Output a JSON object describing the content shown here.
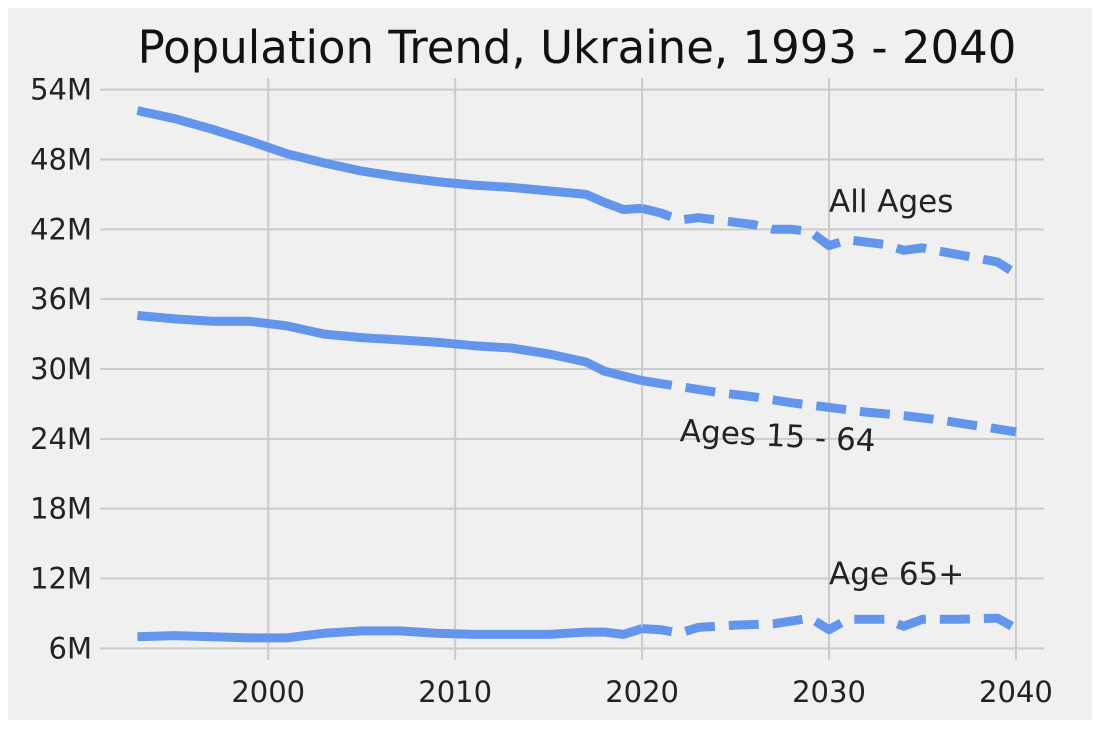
{
  "chart_data": {
    "type": "line",
    "title": "Population Trend, Ukraine, 1993 - 2040",
    "xlabel": "",
    "ylabel": "",
    "xlim": [
      1991,
      2041.5
    ],
    "ylim": [
      5,
      55
    ],
    "x_ticks": [
      2000,
      2010,
      2020,
      2030,
      2040
    ],
    "x_tick_labels": [
      "2000",
      "2010",
      "2020",
      "2030",
      "2040"
    ],
    "y_ticks": [
      6,
      12,
      18,
      24,
      30,
      36,
      42,
      48,
      54
    ],
    "y_tick_labels": [
      "6M",
      "12M",
      "18M",
      "24M",
      "30M",
      "36M",
      "42M",
      "48M",
      "54M"
    ],
    "grid": true,
    "line_color": "#6495ed",
    "series": [
      {
        "x": [
          1993,
          1995,
          1997,
          1999,
          2001,
          2003,
          2005,
          2007,
          2009,
          2011,
          2013,
          2015,
          2017,
          2018,
          2019,
          2020,
          2021,
          2022,
          2023,
          2024,
          2025,
          2026,
          2027,
          2028,
          2029,
          2030,
          2031,
          2032,
          2033,
          2034,
          2035,
          2036,
          2037,
          2038,
          2039,
          2040
        ],
        "values": [
          52.2,
          51.5,
          50.6,
          49.6,
          48.5,
          47.7,
          47.0,
          46.5,
          46.1,
          45.8,
          45.6,
          45.3,
          45.0,
          44.3,
          43.7,
          43.8,
          43.4,
          42.8,
          43.0,
          42.8,
          42.6,
          42.4,
          42.0,
          42.0,
          41.8,
          40.6,
          41.1,
          40.9,
          40.7,
          40.2,
          40.4,
          40.1,
          39.8,
          39.5,
          39.2,
          38.2
        ],
        "projected_from_index": 15
      },
      {
        "x": [
          1993,
          1995,
          1997,
          1999,
          2001,
          2003,
          2005,
          2007,
          2009,
          2011,
          2013,
          2015,
          2017,
          2018,
          2019,
          2020,
          2022,
          2024,
          2026,
          2028,
          2030,
          2032,
          2034,
          2036,
          2038,
          2040
        ],
        "values": [
          34.6,
          34.3,
          34.1,
          34.1,
          33.7,
          33.0,
          32.7,
          32.5,
          32.3,
          32.0,
          31.8,
          31.3,
          30.6,
          29.8,
          29.4,
          29.0,
          28.5,
          28.0,
          27.6,
          27.1,
          26.7,
          26.3,
          26.0,
          25.6,
          25.1,
          24.6
        ],
        "projected_from_index": 15
      },
      {
        "x": [
          1993,
          1995,
          1997,
          1999,
          2001,
          2003,
          2005,
          2007,
          2009,
          2011,
          2013,
          2015,
          2017,
          2018,
          2019,
          2020,
          2021,
          2022,
          2023,
          2025,
          2027,
          2029,
          2030,
          2031,
          2033,
          2034,
          2035,
          2037,
          2039,
          2040
        ],
        "values": [
          7.0,
          7.1,
          7.0,
          6.9,
          6.9,
          7.3,
          7.5,
          7.5,
          7.3,
          7.2,
          7.2,
          7.2,
          7.4,
          7.4,
          7.2,
          7.7,
          7.6,
          7.3,
          7.8,
          8.0,
          8.1,
          8.6,
          7.6,
          8.5,
          8.5,
          7.9,
          8.5,
          8.5,
          8.6,
          7.7
        ],
        "projected_from_index": 15
      }
    ],
    "annotations": [
      {
        "text": "All Ages",
        "x": 2030,
        "y": 43.5,
        "rotation": 0
      },
      {
        "text": "Ages 15 - 64",
        "x": 2022,
        "y": 23.8,
        "rotation": 3
      },
      {
        "text": "Age 65+",
        "x": 2030,
        "y": 11.5,
        "rotation": 0
      }
    ]
  }
}
